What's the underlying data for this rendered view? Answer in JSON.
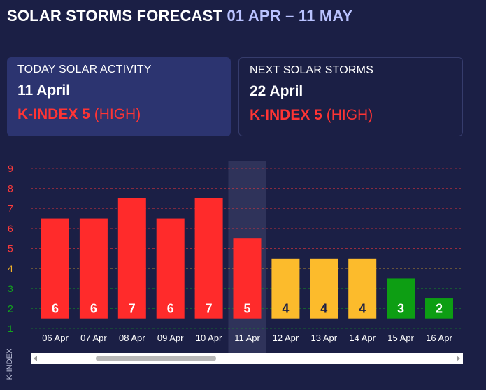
{
  "header": {
    "title_main": "SOLAR STORMS FORECAST",
    "title_range": "01 APR – 11 MAY"
  },
  "today_card": {
    "label": "TODAY SOLAR ACTIVITY",
    "date": "11 April",
    "kindex": "K-INDEX 5",
    "level": "(HIGH)"
  },
  "next_card": {
    "label": "NEXT SOLAR STORMS",
    "date": "22 April",
    "kindex": "K-INDEX 5",
    "level": "(HIGH)"
  },
  "chart_data": {
    "type": "bar",
    "ylabel": "K-INDEX",
    "ylim": [
      1,
      9
    ],
    "yticks": [
      1,
      2,
      3,
      4,
      5,
      6,
      7,
      8,
      9
    ],
    "categories": [
      "06 Apr",
      "07 Apr",
      "08 Apr",
      "09 Apr",
      "10 Apr",
      "11 Apr",
      "12 Apr",
      "13 Apr",
      "14 Apr",
      "15 Apr",
      "16 Apr"
    ],
    "values": [
      6,
      6,
      7,
      6,
      7,
      5,
      4,
      4,
      4,
      3,
      2
    ],
    "highlight_category": "11 Apr",
    "colors": {
      "high": "#ff2b2b",
      "moderate": "#fcbb2c",
      "low": "#0d9e13",
      "tick_high": "#ff3a3a",
      "tick_moderate": "#f5b52a",
      "tick_low": "#12a81c",
      "highlight_band": "#2f335a",
      "label_light": "#ffffff",
      "label_dark": "#1b1f45"
    }
  }
}
